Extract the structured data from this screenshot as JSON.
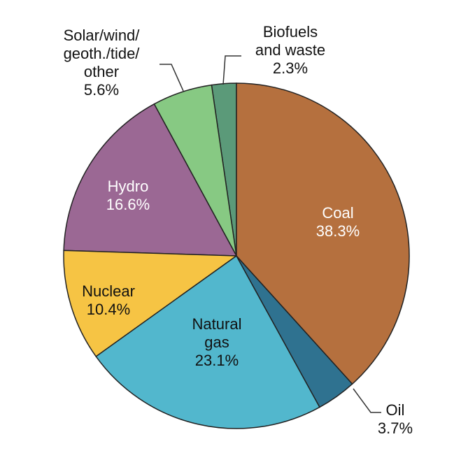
{
  "chart_data": {
    "type": "pie",
    "categories": [
      "Coal",
      "Oil",
      "Natural\ngas",
      "Nuclear",
      "Hydro",
      "Solar/wind/\ngeoth./tide/\nother",
      "Biofuels\nand waste"
    ],
    "values": [
      38.3,
      3.7,
      23.1,
      10.4,
      16.6,
      5.6,
      2.3
    ],
    "value_labels": [
      "38.3%",
      "3.7%",
      "23.1%",
      "10.4%",
      "16.6%",
      "5.6%",
      "2.3%"
    ],
    "colors": [
      "#b5703e",
      "#2f7290",
      "#52b7cd",
      "#f6c444",
      "#9b6894",
      "#87c983",
      "#5b9a79"
    ]
  }
}
